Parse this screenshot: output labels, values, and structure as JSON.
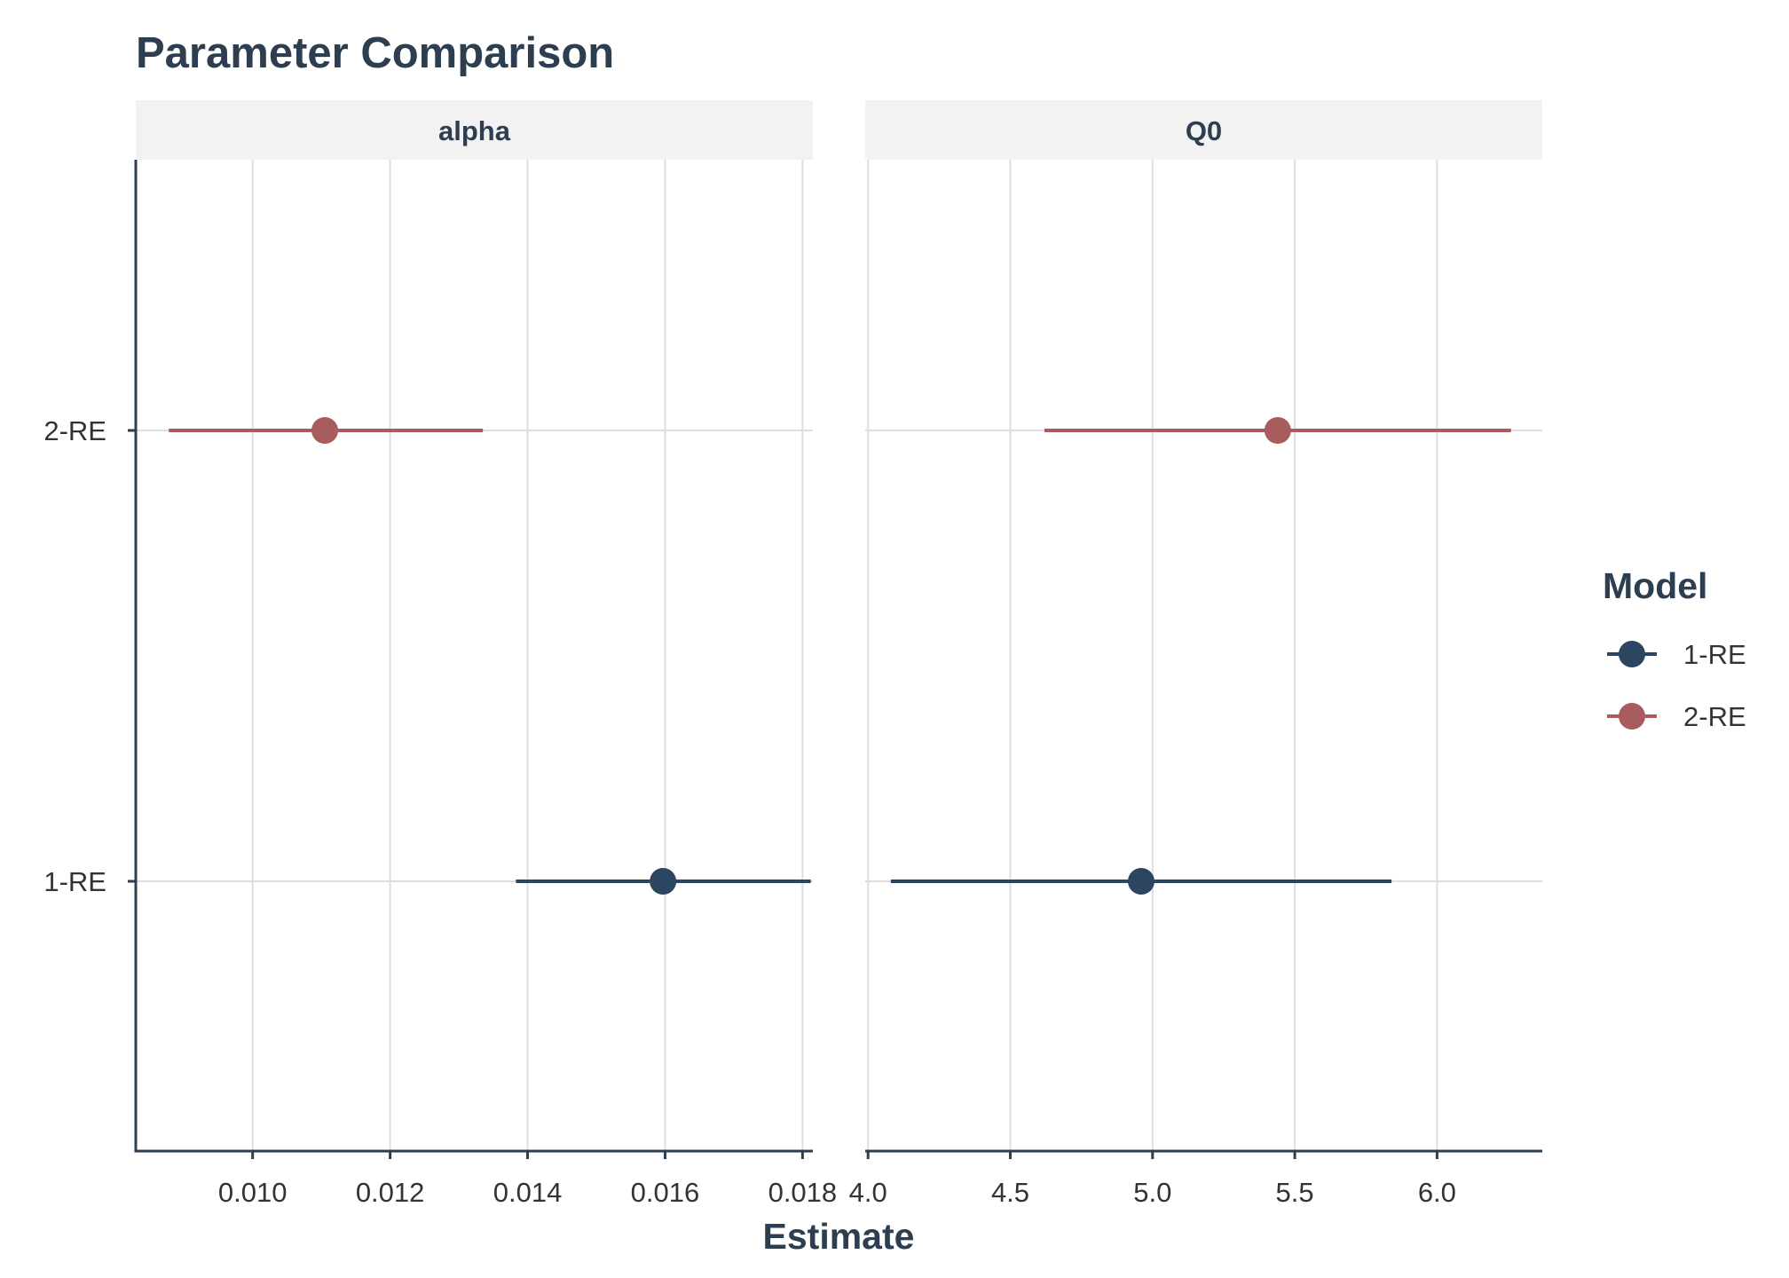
{
  "chart_data": {
    "type": "forest",
    "title": "Parameter Comparison",
    "xlabel": "Estimate",
    "ylabel": "",
    "categories": [
      "2-RE",
      "1-RE"
    ],
    "facets": [
      {
        "label": "alpha",
        "xlim": [
          0.0083,
          0.01815
        ],
        "ticks": [
          0.01,
          0.012,
          0.014,
          0.016,
          0.018
        ],
        "tick_labels": [
          "0.010",
          "0.012",
          "0.014",
          "0.016",
          "0.018"
        ],
        "points": [
          {
            "model": "2-RE",
            "estimate": 0.01105,
            "lower": 0.00878,
            "upper": 0.01335
          },
          {
            "model": "1-RE",
            "estimate": 0.01597,
            "lower": 0.01383,
            "upper": 0.01812
          }
        ]
      },
      {
        "label": "Q0",
        "xlim": [
          3.99,
          6.37
        ],
        "ticks": [
          4.0,
          4.5,
          5.0,
          5.5,
          6.0
        ],
        "tick_labels": [
          "4.0",
          "4.5",
          "5.0",
          "5.5",
          "6.0"
        ],
        "points": [
          {
            "model": "2-RE",
            "estimate": 5.44,
            "lower": 4.62,
            "upper": 6.26
          },
          {
            "model": "1-RE",
            "estimate": 4.96,
            "lower": 4.08,
            "upper": 5.84
          }
        ]
      }
    ],
    "legend": {
      "title": "Model",
      "position": "right",
      "entries": [
        {
          "label": "1-RE",
          "color": "#2c4661"
        },
        {
          "label": "2-RE",
          "color": "#a85c5e"
        }
      ]
    },
    "grid": true,
    "colors": {
      "1-RE": "#2c4661",
      "2-RE": "#a85c5e"
    }
  }
}
